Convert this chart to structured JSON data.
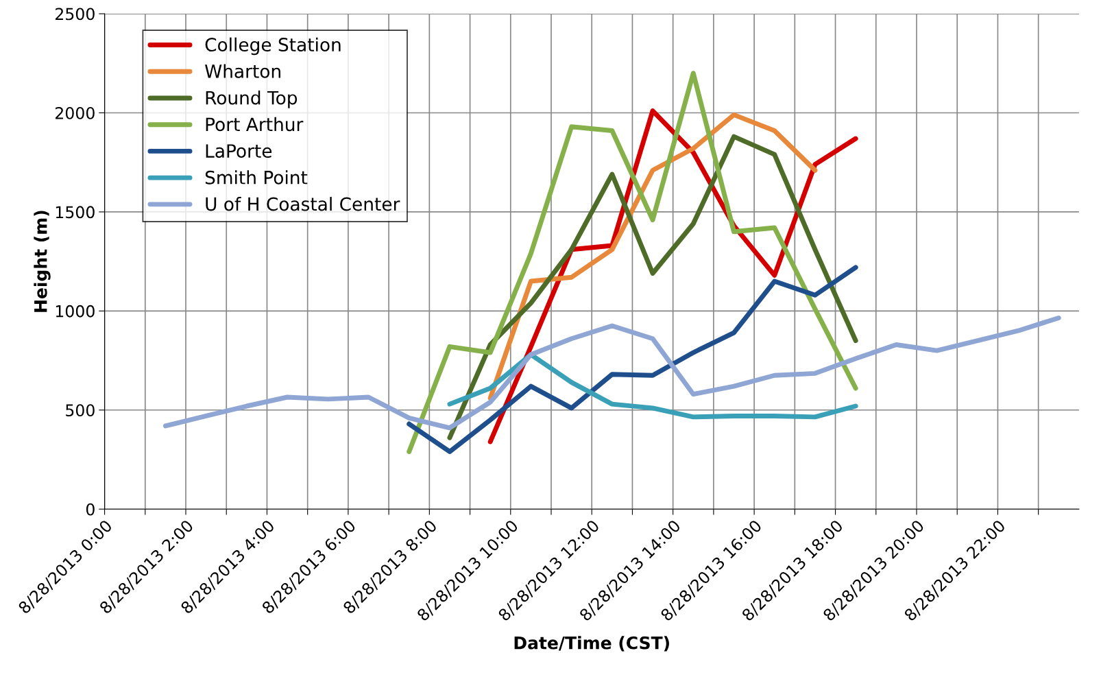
{
  "chart_data": {
    "type": "line",
    "xlabel": "Date/Time (CST)",
    "ylabel": "Height (m)",
    "xlim": [
      "2013-08-28T00:00",
      "2013-08-29T00:00"
    ],
    "ylim": [
      0,
      2500
    ],
    "xticks": [
      {
        "value": "2013-08-28T00:00",
        "label": "8/28/2013 0:00"
      },
      {
        "value": "2013-08-28T01:00",
        "label": null
      },
      {
        "value": "2013-08-28T02:00",
        "label": "8/28/2013 2:00"
      },
      {
        "value": "2013-08-28T03:00",
        "label": null
      },
      {
        "value": "2013-08-28T04:00",
        "label": "8/28/2013 4:00"
      },
      {
        "value": "2013-08-28T05:00",
        "label": null
      },
      {
        "value": "2013-08-28T06:00",
        "label": "8/28/2013 6:00"
      },
      {
        "value": "2013-08-28T07:00",
        "label": null
      },
      {
        "value": "2013-08-28T08:00",
        "label": "8/28/2013 8:00"
      },
      {
        "value": "2013-08-28T09:00",
        "label": null
      },
      {
        "value": "2013-08-28T10:00",
        "label": "8/28/2013 10:00"
      },
      {
        "value": "2013-08-28T11:00",
        "label": null
      },
      {
        "value": "2013-08-28T12:00",
        "label": "8/28/2013 12:00"
      },
      {
        "value": "2013-08-28T13:00",
        "label": null
      },
      {
        "value": "2013-08-28T14:00",
        "label": "8/28/2013 14:00"
      },
      {
        "value": "2013-08-28T15:00",
        "label": null
      },
      {
        "value": "2013-08-28T16:00",
        "label": "8/28/2013 16:00"
      },
      {
        "value": "2013-08-28T17:00",
        "label": null
      },
      {
        "value": "2013-08-28T18:00",
        "label": "8/28/2013 18:00"
      },
      {
        "value": "2013-08-28T19:00",
        "label": null
      },
      {
        "value": "2013-08-28T20:00",
        "label": "8/28/2013 20:00"
      },
      {
        "value": "2013-08-28T21:00",
        "label": null
      },
      {
        "value": "2013-08-28T22:00",
        "label": "8/28/2013 22:00"
      },
      {
        "value": "2013-08-28T23:00",
        "label": null
      }
    ],
    "yticks": [
      0,
      500,
      1000,
      1500,
      2000,
      2500
    ],
    "grid": true,
    "legend": "top left",
    "marker": "none",
    "line_style": "solid",
    "series": [
      {
        "name": "College Station",
        "color": "#d40000",
        "x": [
          "2013-08-28T09:30",
          "2013-08-28T10:30",
          "2013-08-28T11:30",
          "2013-08-28T12:30",
          "2013-08-28T13:30",
          "2013-08-28T14:30",
          "2013-08-28T15:30",
          "2013-08-28T16:30",
          "2013-08-28T17:30",
          "2013-08-28T18:30"
        ],
        "values": [
          340,
          820,
          1310,
          1330,
          2010,
          1800,
          1430,
          1180,
          1740,
          1870
        ]
      },
      {
        "name": "Wharton",
        "color": "#e8883a",
        "x": [
          "2013-08-28T09:30",
          "2013-08-28T10:30",
          "2013-08-28T11:30",
          "2013-08-28T12:30",
          "2013-08-28T13:30",
          "2013-08-28T14:30",
          "2013-08-28T15:30",
          "2013-08-28T16:30",
          "2013-08-28T17:30"
        ],
        "values": [
          560,
          1150,
          1170,
          1310,
          1710,
          1820,
          1990,
          1910,
          1710
        ]
      },
      {
        "name": "Round Top",
        "color": "#4f6b28",
        "x": [
          "2013-08-28T08:30",
          "2013-08-28T09:30",
          "2013-08-28T10:30",
          "2013-08-28T11:30",
          "2013-08-28T12:30",
          "2013-08-28T13:30",
          "2013-08-28T14:30",
          "2013-08-28T15:30",
          "2013-08-28T16:30",
          "2013-08-28T17:30",
          "2013-08-28T18:30"
        ],
        "values": [
          360,
          830,
          1040,
          1310,
          1690,
          1190,
          1440,
          1880,
          1790,
          1310,
          850
        ]
      },
      {
        "name": "Port Arthur",
        "color": "#86b04a",
        "x": [
          "2013-08-28T07:30",
          "2013-08-28T08:30",
          "2013-08-28T09:30",
          "2013-08-28T10:30",
          "2013-08-28T11:30",
          "2013-08-28T12:30",
          "2013-08-28T13:30",
          "2013-08-28T14:30",
          "2013-08-28T15:30",
          "2013-08-28T16:30",
          "2013-08-28T17:30",
          "2013-08-28T18:30"
        ],
        "values": [
          290,
          820,
          790,
          1290,
          1930,
          1910,
          1460,
          2200,
          1400,
          1420,
          1010,
          610
        ]
      },
      {
        "name": "LaPorte",
        "color": "#1f4e8c",
        "x": [
          "2013-08-28T07:30",
          "2013-08-28T08:30",
          "2013-08-28T09:30",
          "2013-08-28T10:30",
          "2013-08-28T11:30",
          "2013-08-28T12:30",
          "2013-08-28T13:30",
          "2013-08-28T14:30",
          "2013-08-28T15:30",
          "2013-08-28T16:30",
          "2013-08-28T17:30",
          "2013-08-28T18:30"
        ],
        "values": [
          430,
          290,
          450,
          620,
          510,
          680,
          675,
          790,
          890,
          1150,
          1080,
          1220
        ]
      },
      {
        "name": "Smith Point",
        "color": "#3aa0b8",
        "x": [
          "2013-08-28T08:30",
          "2013-08-28T09:30",
          "2013-08-28T10:30",
          "2013-08-28T11:30",
          "2013-08-28T12:30",
          "2013-08-28T13:30",
          "2013-08-28T14:30",
          "2013-08-28T15:30",
          "2013-08-28T16:30",
          "2013-08-28T17:30",
          "2013-08-28T18:30"
        ],
        "values": [
          530,
          610,
          780,
          640,
          530,
          510,
          465,
          470,
          470,
          465,
          520
        ]
      },
      {
        "name": "U of H Coastal Center",
        "color": "#8fa6d4",
        "x": [
          "2013-08-28T01:30",
          "2013-08-28T02:30",
          "2013-08-28T03:30",
          "2013-08-28T04:30",
          "2013-08-28T05:30",
          "2013-08-28T06:30",
          "2013-08-28T07:30",
          "2013-08-28T08:30",
          "2013-08-28T09:30",
          "2013-08-28T10:30",
          "2013-08-28T11:30",
          "2013-08-28T12:30",
          "2013-08-28T13:30",
          "2013-08-28T14:30",
          "2013-08-28T15:30",
          "2013-08-28T16:30",
          "2013-08-28T17:30",
          "2013-08-28T18:30",
          "2013-08-28T19:30",
          "2013-08-28T20:30",
          "2013-08-28T21:30",
          "2013-08-28T22:30",
          "2013-08-28T23:30"
        ],
        "values": [
          420,
          470,
          520,
          565,
          555,
          565,
          460,
          410,
          540,
          780,
          860,
          925,
          860,
          580,
          620,
          675,
          685,
          760,
          830,
          800,
          850,
          900,
          965
        ]
      }
    ]
  }
}
